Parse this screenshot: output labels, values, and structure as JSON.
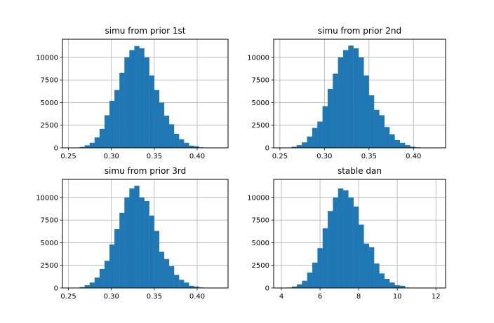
{
  "chart_data": [
    {
      "type": "bar",
      "title": "simu from prior 1st",
      "xlim": [
        0.243,
        0.436
      ],
      "ylim": [
        0,
        12000
      ],
      "xticks": [
        "0.25",
        "0.30",
        "0.35",
        "0.40"
      ],
      "xtick_values": [
        0.25,
        0.3,
        0.35,
        0.4
      ],
      "yticks": [
        "0",
        "2500",
        "5000",
        "7500",
        "10000"
      ],
      "ytick_values": [
        0,
        2500,
        5000,
        7500,
        10000
      ],
      "grid": true,
      "bin_start": 0.2515,
      "bin_width": 0.00579,
      "values": [
        10,
        40,
        100,
        280,
        560,
        1150,
        2100,
        3600,
        5200,
        6400,
        8300,
        10000,
        10800,
        11250,
        11000,
        10000,
        8000,
        6400,
        5000,
        3550,
        2600,
        1550,
        950,
        560,
        250,
        180,
        60,
        20,
        10,
        3
      ]
    },
    {
      "type": "bar",
      "title": "simu from prior 2nd",
      "xlim": [
        0.243,
        0.436
      ],
      "ylim": [
        0,
        12000
      ],
      "xticks": [
        "0.25",
        "0.30",
        "0.35",
        "0.40"
      ],
      "xtick_values": [
        0.25,
        0.3,
        0.35,
        0.4
      ],
      "yticks": [
        "0",
        "2500",
        "5000",
        "7500",
        "10000"
      ],
      "ytick_values": [
        0,
        2500,
        5000,
        7500,
        10000
      ],
      "grid": true,
      "bin_start": 0.2515,
      "bin_width": 0.00579,
      "values": [
        10,
        40,
        120,
        300,
        600,
        1250,
        2200,
        2900,
        4600,
        6500,
        8200,
        10000,
        10800,
        11300,
        11000,
        10000,
        8000,
        5800,
        4200,
        3600,
        2300,
        1500,
        850,
        560,
        300,
        120,
        60,
        20,
        8,
        3
      ]
    },
    {
      "type": "bar",
      "title": "simu from prior 3rd",
      "xlim": [
        0.243,
        0.436
      ],
      "ylim": [
        0,
        12000
      ],
      "xticks": [
        "0.25",
        "0.30",
        "0.35",
        "0.40"
      ],
      "xtick_values": [
        0.25,
        0.3,
        0.35,
        0.4
      ],
      "yticks": [
        "0",
        "2500",
        "5000",
        "7500",
        "10000"
      ],
      "ytick_values": [
        0,
        2500,
        5000,
        7500,
        10000
      ],
      "grid": true,
      "bin_start": 0.2515,
      "bin_width": 0.00579,
      "values": [
        10,
        40,
        100,
        300,
        600,
        1150,
        2100,
        3000,
        4800,
        6500,
        8300,
        10000,
        11000,
        11300,
        10000,
        9600,
        8000,
        6300,
        4000,
        3200,
        2400,
        1450,
        900,
        600,
        250,
        150,
        60,
        20,
        8,
        3
      ]
    },
    {
      "type": "bar",
      "title": "stable dan",
      "xlim": [
        3.6,
        12.5
      ],
      "ylim": [
        0,
        12000
      ],
      "xticks": [
        "4",
        "6",
        "8",
        "10",
        "12"
      ],
      "xtick_values": [
        4,
        6,
        8,
        10,
        12
      ],
      "yticks": [
        "0",
        "2500",
        "5000",
        "7500",
        "10000"
      ],
      "ytick_values": [
        0,
        2500,
        5000,
        7500,
        10000
      ],
      "grid": true,
      "bin_start": 4.0,
      "bin_width": 0.2667,
      "values": [
        10,
        50,
        150,
        400,
        800,
        1700,
        2800,
        4400,
        6600,
        8500,
        10000,
        11000,
        10800,
        10000,
        9000,
        7000,
        4900,
        4500,
        2700,
        1600,
        1000,
        600,
        300,
        250,
        50,
        20,
        10,
        5,
        3,
        2
      ]
    }
  ],
  "colors": {
    "bar": "#1f77b4",
    "grid": "#b0b0b0",
    "axes": "#000000"
  }
}
